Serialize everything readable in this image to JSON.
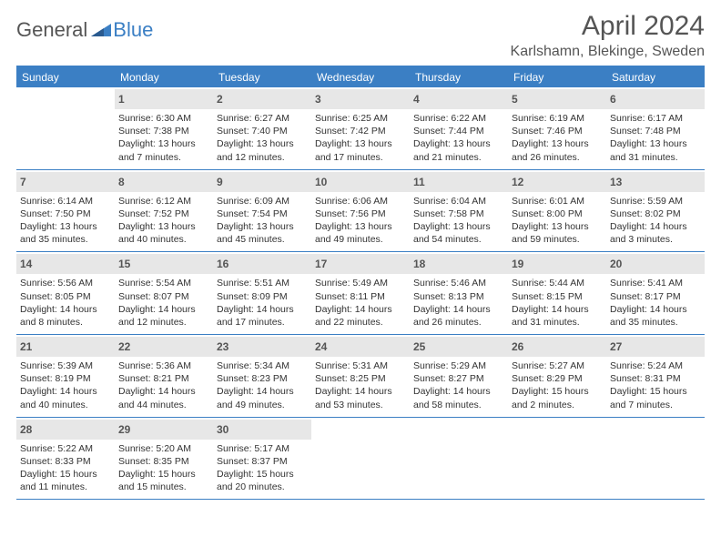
{
  "logo": {
    "general": "General",
    "blue": "Blue"
  },
  "title": "April 2024",
  "location": "Karlshamn, Blekinge, Sweden",
  "colors": {
    "header_bg": "#3b7fc4",
    "header_text": "#ffffff",
    "daynum_bg": "#e7e7e7",
    "text": "#333333",
    "title_text": "#555555",
    "border": "#3b7fc4",
    "page_bg": "#ffffff"
  },
  "day_names": [
    "Sunday",
    "Monday",
    "Tuesday",
    "Wednesday",
    "Thursday",
    "Friday",
    "Saturday"
  ],
  "weeks": [
    [
      {
        "n": "",
        "lines": []
      },
      {
        "n": "1",
        "lines": [
          "Sunrise: 6:30 AM",
          "Sunset: 7:38 PM",
          "Daylight: 13 hours",
          "and 7 minutes."
        ]
      },
      {
        "n": "2",
        "lines": [
          "Sunrise: 6:27 AM",
          "Sunset: 7:40 PM",
          "Daylight: 13 hours",
          "and 12 minutes."
        ]
      },
      {
        "n": "3",
        "lines": [
          "Sunrise: 6:25 AM",
          "Sunset: 7:42 PM",
          "Daylight: 13 hours",
          "and 17 minutes."
        ]
      },
      {
        "n": "4",
        "lines": [
          "Sunrise: 6:22 AM",
          "Sunset: 7:44 PM",
          "Daylight: 13 hours",
          "and 21 minutes."
        ]
      },
      {
        "n": "5",
        "lines": [
          "Sunrise: 6:19 AM",
          "Sunset: 7:46 PM",
          "Daylight: 13 hours",
          "and 26 minutes."
        ]
      },
      {
        "n": "6",
        "lines": [
          "Sunrise: 6:17 AM",
          "Sunset: 7:48 PM",
          "Daylight: 13 hours",
          "and 31 minutes."
        ]
      }
    ],
    [
      {
        "n": "7",
        "lines": [
          "Sunrise: 6:14 AM",
          "Sunset: 7:50 PM",
          "Daylight: 13 hours",
          "and 35 minutes."
        ]
      },
      {
        "n": "8",
        "lines": [
          "Sunrise: 6:12 AM",
          "Sunset: 7:52 PM",
          "Daylight: 13 hours",
          "and 40 minutes."
        ]
      },
      {
        "n": "9",
        "lines": [
          "Sunrise: 6:09 AM",
          "Sunset: 7:54 PM",
          "Daylight: 13 hours",
          "and 45 minutes."
        ]
      },
      {
        "n": "10",
        "lines": [
          "Sunrise: 6:06 AM",
          "Sunset: 7:56 PM",
          "Daylight: 13 hours",
          "and 49 minutes."
        ]
      },
      {
        "n": "11",
        "lines": [
          "Sunrise: 6:04 AM",
          "Sunset: 7:58 PM",
          "Daylight: 13 hours",
          "and 54 minutes."
        ]
      },
      {
        "n": "12",
        "lines": [
          "Sunrise: 6:01 AM",
          "Sunset: 8:00 PM",
          "Daylight: 13 hours",
          "and 59 minutes."
        ]
      },
      {
        "n": "13",
        "lines": [
          "Sunrise: 5:59 AM",
          "Sunset: 8:02 PM",
          "Daylight: 14 hours",
          "and 3 minutes."
        ]
      }
    ],
    [
      {
        "n": "14",
        "lines": [
          "Sunrise: 5:56 AM",
          "Sunset: 8:05 PM",
          "Daylight: 14 hours",
          "and 8 minutes."
        ]
      },
      {
        "n": "15",
        "lines": [
          "Sunrise: 5:54 AM",
          "Sunset: 8:07 PM",
          "Daylight: 14 hours",
          "and 12 minutes."
        ]
      },
      {
        "n": "16",
        "lines": [
          "Sunrise: 5:51 AM",
          "Sunset: 8:09 PM",
          "Daylight: 14 hours",
          "and 17 minutes."
        ]
      },
      {
        "n": "17",
        "lines": [
          "Sunrise: 5:49 AM",
          "Sunset: 8:11 PM",
          "Daylight: 14 hours",
          "and 22 minutes."
        ]
      },
      {
        "n": "18",
        "lines": [
          "Sunrise: 5:46 AM",
          "Sunset: 8:13 PM",
          "Daylight: 14 hours",
          "and 26 minutes."
        ]
      },
      {
        "n": "19",
        "lines": [
          "Sunrise: 5:44 AM",
          "Sunset: 8:15 PM",
          "Daylight: 14 hours",
          "and 31 minutes."
        ]
      },
      {
        "n": "20",
        "lines": [
          "Sunrise: 5:41 AM",
          "Sunset: 8:17 PM",
          "Daylight: 14 hours",
          "and 35 minutes."
        ]
      }
    ],
    [
      {
        "n": "21",
        "lines": [
          "Sunrise: 5:39 AM",
          "Sunset: 8:19 PM",
          "Daylight: 14 hours",
          "and 40 minutes."
        ]
      },
      {
        "n": "22",
        "lines": [
          "Sunrise: 5:36 AM",
          "Sunset: 8:21 PM",
          "Daylight: 14 hours",
          "and 44 minutes."
        ]
      },
      {
        "n": "23",
        "lines": [
          "Sunrise: 5:34 AM",
          "Sunset: 8:23 PM",
          "Daylight: 14 hours",
          "and 49 minutes."
        ]
      },
      {
        "n": "24",
        "lines": [
          "Sunrise: 5:31 AM",
          "Sunset: 8:25 PM",
          "Daylight: 14 hours",
          "and 53 minutes."
        ]
      },
      {
        "n": "25",
        "lines": [
          "Sunrise: 5:29 AM",
          "Sunset: 8:27 PM",
          "Daylight: 14 hours",
          "and 58 minutes."
        ]
      },
      {
        "n": "26",
        "lines": [
          "Sunrise: 5:27 AM",
          "Sunset: 8:29 PM",
          "Daylight: 15 hours",
          "and 2 minutes."
        ]
      },
      {
        "n": "27",
        "lines": [
          "Sunrise: 5:24 AM",
          "Sunset: 8:31 PM",
          "Daylight: 15 hours",
          "and 7 minutes."
        ]
      }
    ],
    [
      {
        "n": "28",
        "lines": [
          "Sunrise: 5:22 AM",
          "Sunset: 8:33 PM",
          "Daylight: 15 hours",
          "and 11 minutes."
        ]
      },
      {
        "n": "29",
        "lines": [
          "Sunrise: 5:20 AM",
          "Sunset: 8:35 PM",
          "Daylight: 15 hours",
          "and 15 minutes."
        ]
      },
      {
        "n": "30",
        "lines": [
          "Sunrise: 5:17 AM",
          "Sunset: 8:37 PM",
          "Daylight: 15 hours",
          "and 20 minutes."
        ]
      },
      {
        "n": "",
        "lines": []
      },
      {
        "n": "",
        "lines": []
      },
      {
        "n": "",
        "lines": []
      },
      {
        "n": "",
        "lines": []
      }
    ]
  ]
}
